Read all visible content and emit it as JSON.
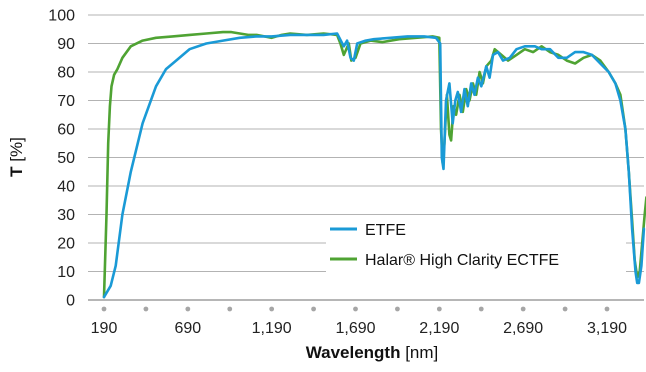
{
  "chart_data": {
    "type": "line",
    "x_label_bold": "Wavelength",
    "x_label_unit": " [nm]",
    "y_label_bold": "T",
    "y_label_unit": " [%]",
    "xlim": [
      190,
      3490
    ],
    "ylim": [
      0,
      100
    ],
    "x_ticks": [
      190,
      690,
      1190,
      1690,
      2190,
      2690,
      3190
    ],
    "x_tick_labels": [
      "190",
      "690",
      "1,190",
      "1,690",
      "2,190",
      "2,690",
      "3,190"
    ],
    "y_ticks": [
      0,
      10,
      20,
      30,
      40,
      50,
      60,
      70,
      80,
      90,
      100
    ],
    "y_tick_labels": [
      "0",
      "10",
      "20",
      "30",
      "40",
      "50",
      "60",
      "70",
      "80",
      "90",
      "100"
    ],
    "grid": "horizontal",
    "legend_position": "bottom-right",
    "series": [
      {
        "name": "ETFE",
        "color": "#1a9ad6",
        "points": [
          [
            190,
            1
          ],
          [
            230,
            5
          ],
          [
            260,
            12
          ],
          [
            300,
            30
          ],
          [
            350,
            45
          ],
          [
            420,
            62
          ],
          [
            500,
            75
          ],
          [
            560,
            81
          ],
          [
            620,
            84
          ],
          [
            700,
            88
          ],
          [
            800,
            90
          ],
          [
            900,
            91
          ],
          [
            1000,
            92
          ],
          [
            1100,
            92.5
          ],
          [
            1190,
            92.5
          ],
          [
            1300,
            93
          ],
          [
            1400,
            93
          ],
          [
            1500,
            93
          ],
          [
            1580,
            93.5
          ],
          [
            1620,
            89
          ],
          [
            1640,
            91
          ],
          [
            1660,
            85
          ],
          [
            1680,
            84
          ],
          [
            1700,
            90
          ],
          [
            1750,
            91
          ],
          [
            1800,
            91.5
          ],
          [
            1900,
            92
          ],
          [
            2000,
            92.5
          ],
          [
            2100,
            92.5
          ],
          [
            2170,
            92
          ],
          [
            2195,
            90
          ],
          [
            2205,
            50
          ],
          [
            2215,
            46
          ],
          [
            2230,
            70
          ],
          [
            2250,
            76
          ],
          [
            2270,
            62
          ],
          [
            2285,
            70
          ],
          [
            2300,
            73
          ],
          [
            2320,
            66
          ],
          [
            2340,
            74
          ],
          [
            2360,
            68
          ],
          [
            2380,
            76
          ],
          [
            2400,
            72
          ],
          [
            2420,
            78
          ],
          [
            2440,
            75
          ],
          [
            2470,
            82
          ],
          [
            2490,
            78
          ],
          [
            2510,
            86
          ],
          [
            2540,
            87
          ],
          [
            2570,
            84
          ],
          [
            2610,
            85
          ],
          [
            2650,
            88
          ],
          [
            2700,
            89
          ],
          [
            2760,
            89
          ],
          [
            2800,
            88
          ],
          [
            2850,
            88
          ],
          [
            2900,
            85
          ],
          [
            2950,
            85
          ],
          [
            3000,
            87
          ],
          [
            3050,
            87
          ],
          [
            3100,
            86
          ],
          [
            3150,
            83
          ],
          [
            3200,
            80
          ],
          [
            3240,
            76
          ],
          [
            3270,
            70
          ],
          [
            3300,
            60
          ],
          [
            3320,
            45
          ],
          [
            3340,
            25
          ],
          [
            3360,
            10
          ],
          [
            3370,
            6
          ],
          [
            3380,
            6
          ],
          [
            3395,
            12
          ],
          [
            3410,
            25
          ]
        ]
      },
      {
        "name": "Halar® High Clarity ECTFE",
        "color": "#4fa333",
        "points": [
          [
            190,
            1
          ],
          [
            205,
            30
          ],
          [
            215,
            55
          ],
          [
            225,
            68
          ],
          [
            235,
            75
          ],
          [
            250,
            79
          ],
          [
            270,
            81
          ],
          [
            300,
            85
          ],
          [
            350,
            89
          ],
          [
            420,
            91
          ],
          [
            500,
            92
          ],
          [
            600,
            92.5
          ],
          [
            700,
            93
          ],
          [
            800,
            93.5
          ],
          [
            900,
            94
          ],
          [
            950,
            94
          ],
          [
            1000,
            93.5
          ],
          [
            1050,
            93
          ],
          [
            1100,
            93
          ],
          [
            1190,
            92
          ],
          [
            1250,
            93
          ],
          [
            1300,
            93.5
          ],
          [
            1400,
            93
          ],
          [
            1500,
            93.5
          ],
          [
            1580,
            93
          ],
          [
            1600,
            90
          ],
          [
            1620,
            86
          ],
          [
            1650,
            90
          ],
          [
            1665,
            84
          ],
          [
            1690,
            85
          ],
          [
            1720,
            90
          ],
          [
            1780,
            91
          ],
          [
            1850,
            90.5
          ],
          [
            1950,
            91.5
          ],
          [
            2050,
            92
          ],
          [
            2150,
            92.5
          ],
          [
            2190,
            92
          ],
          [
            2200,
            60
          ],
          [
            2210,
            48
          ],
          [
            2220,
            55
          ],
          [
            2235,
            72
          ],
          [
            2250,
            58
          ],
          [
            2260,
            56
          ],
          [
            2275,
            68
          ],
          [
            2290,
            65
          ],
          [
            2310,
            72
          ],
          [
            2330,
            66
          ],
          [
            2350,
            74
          ],
          [
            2370,
            70
          ],
          [
            2390,
            76
          ],
          [
            2410,
            72
          ],
          [
            2430,
            80
          ],
          [
            2450,
            76
          ],
          [
            2470,
            82
          ],
          [
            2500,
            84
          ],
          [
            2520,
            88
          ],
          [
            2560,
            86
          ],
          [
            2600,
            84
          ],
          [
            2650,
            86
          ],
          [
            2700,
            88
          ],
          [
            2750,
            87
          ],
          [
            2800,
            89
          ],
          [
            2850,
            87
          ],
          [
            2900,
            86
          ],
          [
            2950,
            84
          ],
          [
            3000,
            83
          ],
          [
            3050,
            85
          ],
          [
            3100,
            86
          ],
          [
            3150,
            84
          ],
          [
            3200,
            80
          ],
          [
            3240,
            76
          ],
          [
            3270,
            72
          ],
          [
            3300,
            60
          ],
          [
            3320,
            45
          ],
          [
            3340,
            28
          ],
          [
            3355,
            14
          ],
          [
            3370,
            8
          ],
          [
            3385,
            10
          ],
          [
            3400,
            20
          ],
          [
            3415,
            30
          ],
          [
            3425,
            36
          ]
        ]
      }
    ]
  }
}
